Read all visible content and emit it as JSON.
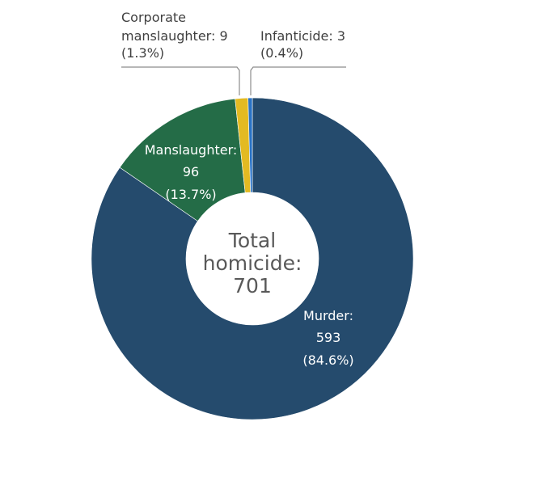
{
  "chart_data": {
    "type": "pie",
    "variant": "donut",
    "center_label": [
      "Total",
      "homicide:",
      "701"
    ],
    "slices": [
      {
        "name": "Murder",
        "value": 593,
        "percent": "84.6%",
        "color": "#254b6d",
        "label": [
          "Murder:",
          "593",
          "(84.6%)"
        ]
      },
      {
        "name": "Manslaughter",
        "value": 96,
        "percent": "13.7%",
        "color": "#246c47",
        "label": [
          "Manslaughter:",
          "96",
          "(13.7%)"
        ]
      },
      {
        "name": "Corporate manslaughter",
        "value": 9,
        "percent": "1.3%",
        "color": "#e3ba22",
        "label": [
          "Corporate",
          "manslaughter: 9",
          "(1.3%)"
        ]
      },
      {
        "name": "Infanticide",
        "value": 3,
        "percent": "0.4%",
        "color": "#2a73c5",
        "label": [
          "Infanticide: 3",
          "(0.4%)"
        ]
      }
    ]
  }
}
